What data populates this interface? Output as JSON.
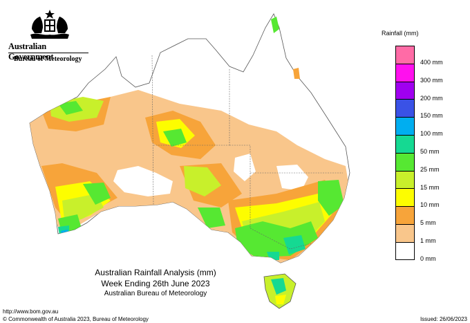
{
  "header": {
    "government": "Australian Government",
    "agency": "Bureau of Meteorology"
  },
  "map": {
    "title_line1": "Australian Rainfall Analysis (mm)",
    "title_line2": "Week Ending 26th June 2023",
    "title_line3": "Australian Bureau of Meteorology",
    "colors": {
      "1 mm": "#f9c68b",
      "5 mm": "#f7a43a",
      "10 mm": "#fdfd00",
      "15 mm": "#c8f02b",
      "25 mm": "#56e832",
      "50 mm": "#15d992",
      "100 mm": "#00aef0",
      "150 mm": "#3a52e6",
      "200 mm": "#9600f5",
      "300 mm": "#ff10ee",
      "400 mm": "#ff5ab5"
    }
  },
  "legend": {
    "title": "Rainfall (mm)",
    "items": [
      {
        "label": "",
        "color": "#ff6ba6"
      },
      {
        "label": "400 mm",
        "color": "#ff10ee"
      },
      {
        "label": "300 mm",
        "color": "#a000f0"
      },
      {
        "label": "200 mm",
        "color": "#3a52e6"
      },
      {
        "label": "150 mm",
        "color": "#00aef0"
      },
      {
        "label": "100 mm",
        "color": "#15d992"
      },
      {
        "label": "50 mm",
        "color": "#56e832"
      },
      {
        "label": "25 mm",
        "color": "#c8f02b"
      },
      {
        "label": "15 mm",
        "color": "#fdfd00"
      },
      {
        "label": "10 mm",
        "color": "#f7a43a"
      },
      {
        "label": "5 mm",
        "color": "#f9c68b"
      },
      {
        "label": "1 mm",
        "color": "#ffffff"
      }
    ],
    "bottom_label": "0 mm"
  },
  "footer": {
    "url": "http://www.bom.gov.au",
    "copyright": "© Commonwealth of Australia 2023, Bureau of Meteorology",
    "issued": "Issued: 26/06/2023"
  }
}
